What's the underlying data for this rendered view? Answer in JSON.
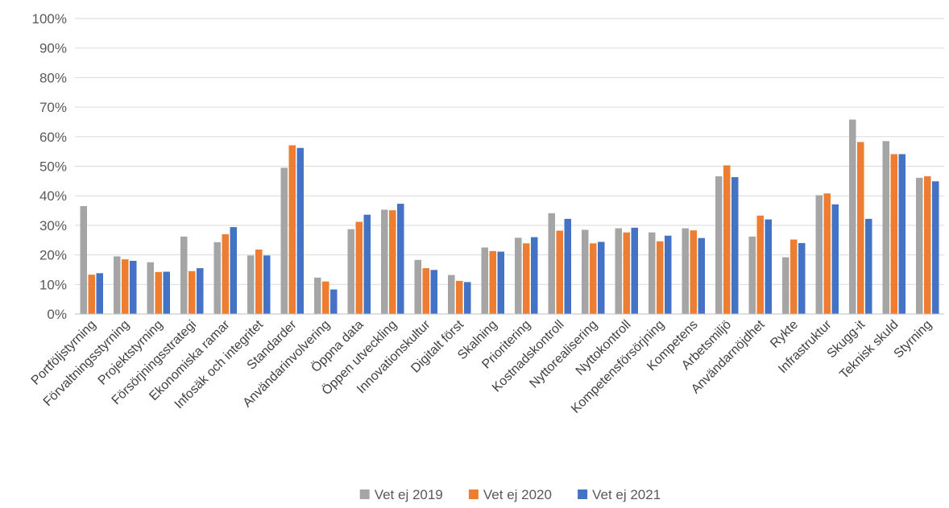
{
  "chart_data": {
    "type": "bar",
    "categories": [
      "Portföljstyrning",
      "Förvaltningsstyrning",
      "Projektstyrning",
      "Försörjningsstrategi",
      "Ekonomiska ramar",
      "Infosäk och integritet",
      "Standarder",
      "Användarinvolvering",
      "Öppna data",
      "Öppen utveckling",
      "Innovationskultur",
      "Digitalt först",
      "Skalning",
      "Prioritering",
      "Kostnadskontroll",
      "Nyttorealisering",
      "Nyttokontroll",
      "Kompetensförsörjning",
      "Kompetens",
      "Arbetsmiljö",
      "Användarnöjdhet",
      "Rykte",
      "Infrastruktur",
      "Skugg-it",
      "Teknisk skuld",
      "Styrning"
    ],
    "series": [
      {
        "name": "Vet ej 2019",
        "color": "#a5a5a5",
        "values": [
          36.5,
          19.5,
          17.5,
          26.2,
          24.3,
          19.8,
          49.5,
          12.3,
          28.7,
          35.3,
          18.3,
          13.2,
          22.5,
          25.8,
          34.1,
          28.5,
          29.0,
          27.6,
          29.0,
          46.6,
          26.2,
          19.2,
          40.2,
          65.8,
          58.5,
          46.1
        ]
      },
      {
        "name": "Vet ej 2020",
        "color": "#ed7d31",
        "values": [
          13.3,
          18.5,
          14.2,
          14.5,
          27.0,
          21.8,
          57.1,
          11.0,
          31.2,
          35.1,
          15.5,
          11.2,
          21.3,
          23.9,
          28.2,
          23.9,
          27.6,
          24.6,
          28.3,
          50.3,
          33.3,
          25.2,
          40.8,
          58.2,
          54.1,
          46.6
        ]
      },
      {
        "name": "Vet ej 2021",
        "color": "#4472c4",
        "values": [
          13.8,
          18.0,
          14.3,
          15.5,
          29.4,
          19.8,
          56.2,
          8.3,
          33.6,
          37.3,
          14.9,
          10.8,
          21.1,
          26.0,
          32.2,
          24.4,
          29.2,
          26.5,
          25.7,
          46.3,
          32.0,
          24.0,
          37.1,
          32.2,
          54.1,
          44.9
        ]
      }
    ],
    "yticks": [
      "0%",
      "10%",
      "20%",
      "30%",
      "40%",
      "50%",
      "60%",
      "70%",
      "80%",
      "90%",
      "100%"
    ],
    "ylim": [
      0,
      100
    ],
    "title": "",
    "xlabel": "",
    "ylabel": "",
    "grid": true,
    "legend": "bottom-center"
  }
}
